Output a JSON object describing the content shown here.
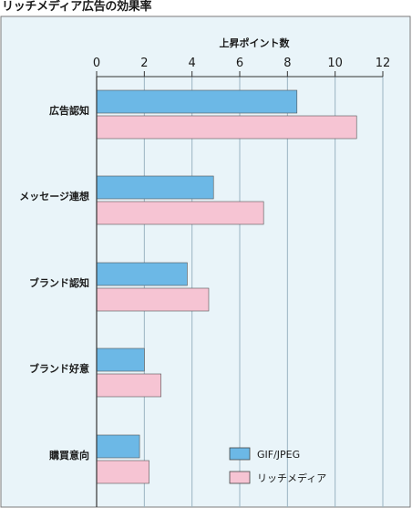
{
  "title": "リッチメディア広告の効果率",
  "chart_data": {
    "type": "bar",
    "orientation": "horizontal",
    "title": "リッチメディア広告の効果率",
    "xlabel": "上昇ポイント数",
    "ylabel": "",
    "xlim": [
      0,
      12
    ],
    "xticks": [
      0,
      2,
      4,
      6,
      8,
      10,
      12
    ],
    "categories": [
      "広告認知",
      "メッセージ連想",
      "ブランド認知",
      "ブランド好意",
      "購買意向"
    ],
    "series": [
      {
        "name": "GIF/JPEG",
        "color": "#6cb8e6",
        "values": [
          8.4,
          4.9,
          3.8,
          2.0,
          1.8
        ]
      },
      {
        "name": "リッチメディア",
        "color": "#f6c4d3",
        "values": [
          10.9,
          7.0,
          4.7,
          2.7,
          2.2
        ]
      }
    ],
    "legend_position": "bottom-right",
    "grid": true
  }
}
